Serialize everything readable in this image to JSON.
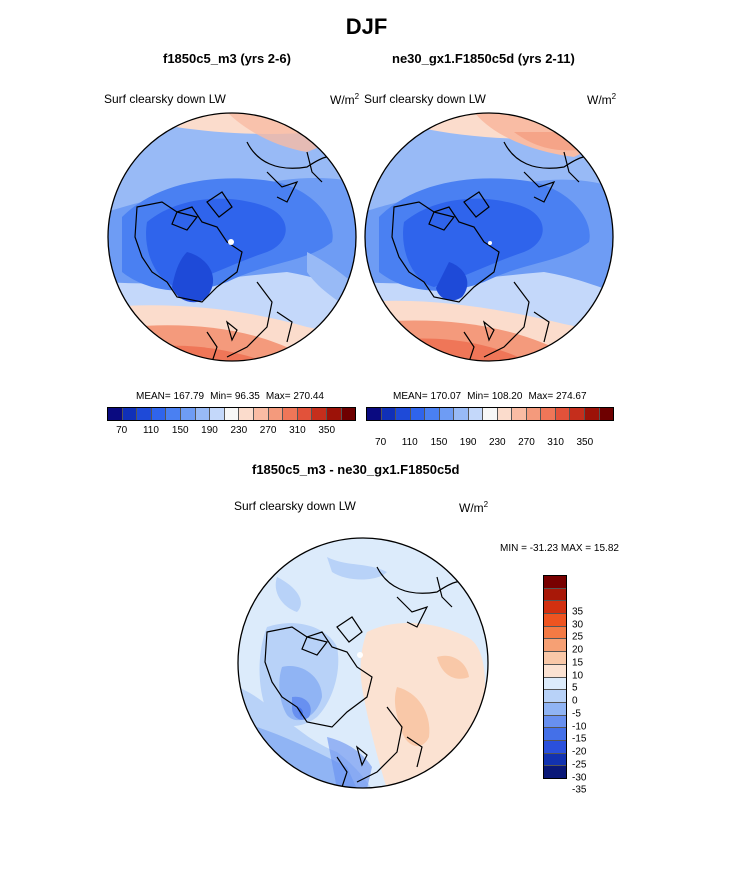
{
  "title": "DJF",
  "panels": [
    {
      "subtitle": "f1850c5_m3 (yrs 2-6)",
      "variable": "Surf clearsky down LW",
      "units": "W/m",
      "units_sup": "2",
      "mean": "MEAN= 167.79",
      "min": "Min=  96.35",
      "max": "Max= 270.44"
    },
    {
      "subtitle": "ne30_gx1.F1850c5d (yrs 2-11)",
      "variable": "Surf clearsky down LW",
      "units": "W/m",
      "units_sup": "2",
      "mean": "MEAN= 170.07",
      "min": "Min= 108.20",
      "max": "Max= 274.67"
    }
  ],
  "difference": {
    "subtitle": "f1850c5_m3 - ne30_gx1.F1850c5d",
    "variable": "Surf clearsky down LW",
    "units": "W/m",
    "units_sup": "2",
    "minmax": "MIN = -31.23 MAX =  15.82"
  },
  "colorbar_abs": {
    "colors": [
      "#0a0a80",
      "#1030b8",
      "#1e4ad8",
      "#2f64ec",
      "#4a80f2",
      "#6e9cf4",
      "#98baf6",
      "#c4d8fa",
      "#f7f7f7",
      "#fbdccc",
      "#f9bca4",
      "#f49a7c",
      "#ef7658",
      "#e2523a",
      "#c52e1c",
      "#9c1208",
      "#6e0000"
    ],
    "tick_labels": [
      "70",
      "110",
      "150",
      "190",
      "230",
      "270",
      "310",
      "350"
    ]
  },
  "colorbar_diff": {
    "colors": [
      "#780000",
      "#a81808",
      "#d23010",
      "#ee5420",
      "#f47a44",
      "#f6a074",
      "#f9c8a8",
      "#fbe2d2",
      "#dcebfb",
      "#b8d2f8",
      "#90b4f4",
      "#6890f0",
      "#4470e8",
      "#2a50dc",
      "#1232b0",
      "#0a1878"
    ],
    "tick_labels": [
      "35",
      "30",
      "25",
      "20",
      "15",
      "10",
      "5",
      "0",
      "-5",
      "-10",
      "-15",
      "-20",
      "-25",
      "-30",
      "-35"
    ]
  }
}
